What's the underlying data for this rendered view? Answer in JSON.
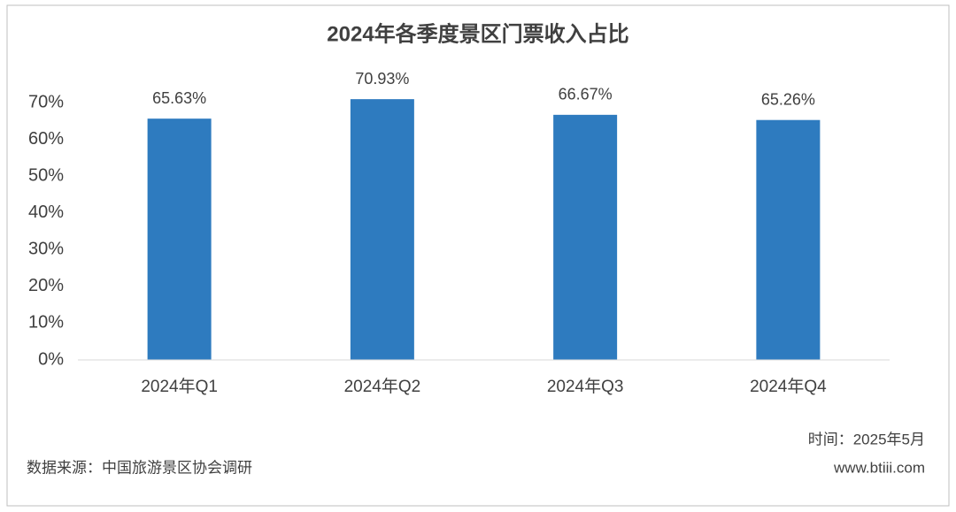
{
  "chart_data": {
    "type": "bar",
    "title": "2024年各季度景区门票收入占比",
    "categories": [
      "2024年Q1",
      "2024年Q2",
      "2024年Q3",
      "2024年Q4"
    ],
    "values": [
      65.63,
      70.93,
      66.67,
      65.26
    ],
    "value_labels": [
      "65.63%",
      "70.93%",
      "66.67%",
      "65.26%"
    ],
    "color": "#2e7bbf",
    "ylim": [
      0,
      70
    ],
    "yticks": [
      {
        "value": 0,
        "label": "0%"
      },
      {
        "value": 10,
        "label": "10%"
      },
      {
        "value": 20,
        "label": "20%"
      },
      {
        "value": 30,
        "label": "30%"
      },
      {
        "value": 40,
        "label": "40%"
      },
      {
        "value": 50,
        "label": "50%"
      },
      {
        "value": 60,
        "label": "60%"
      },
      {
        "value": 70,
        "label": "70%"
      }
    ],
    "grid": false,
    "source": "数据来源：中国旅游景区协会调研",
    "date": "时间：2025年5月",
    "website": "www.btiii.com"
  }
}
